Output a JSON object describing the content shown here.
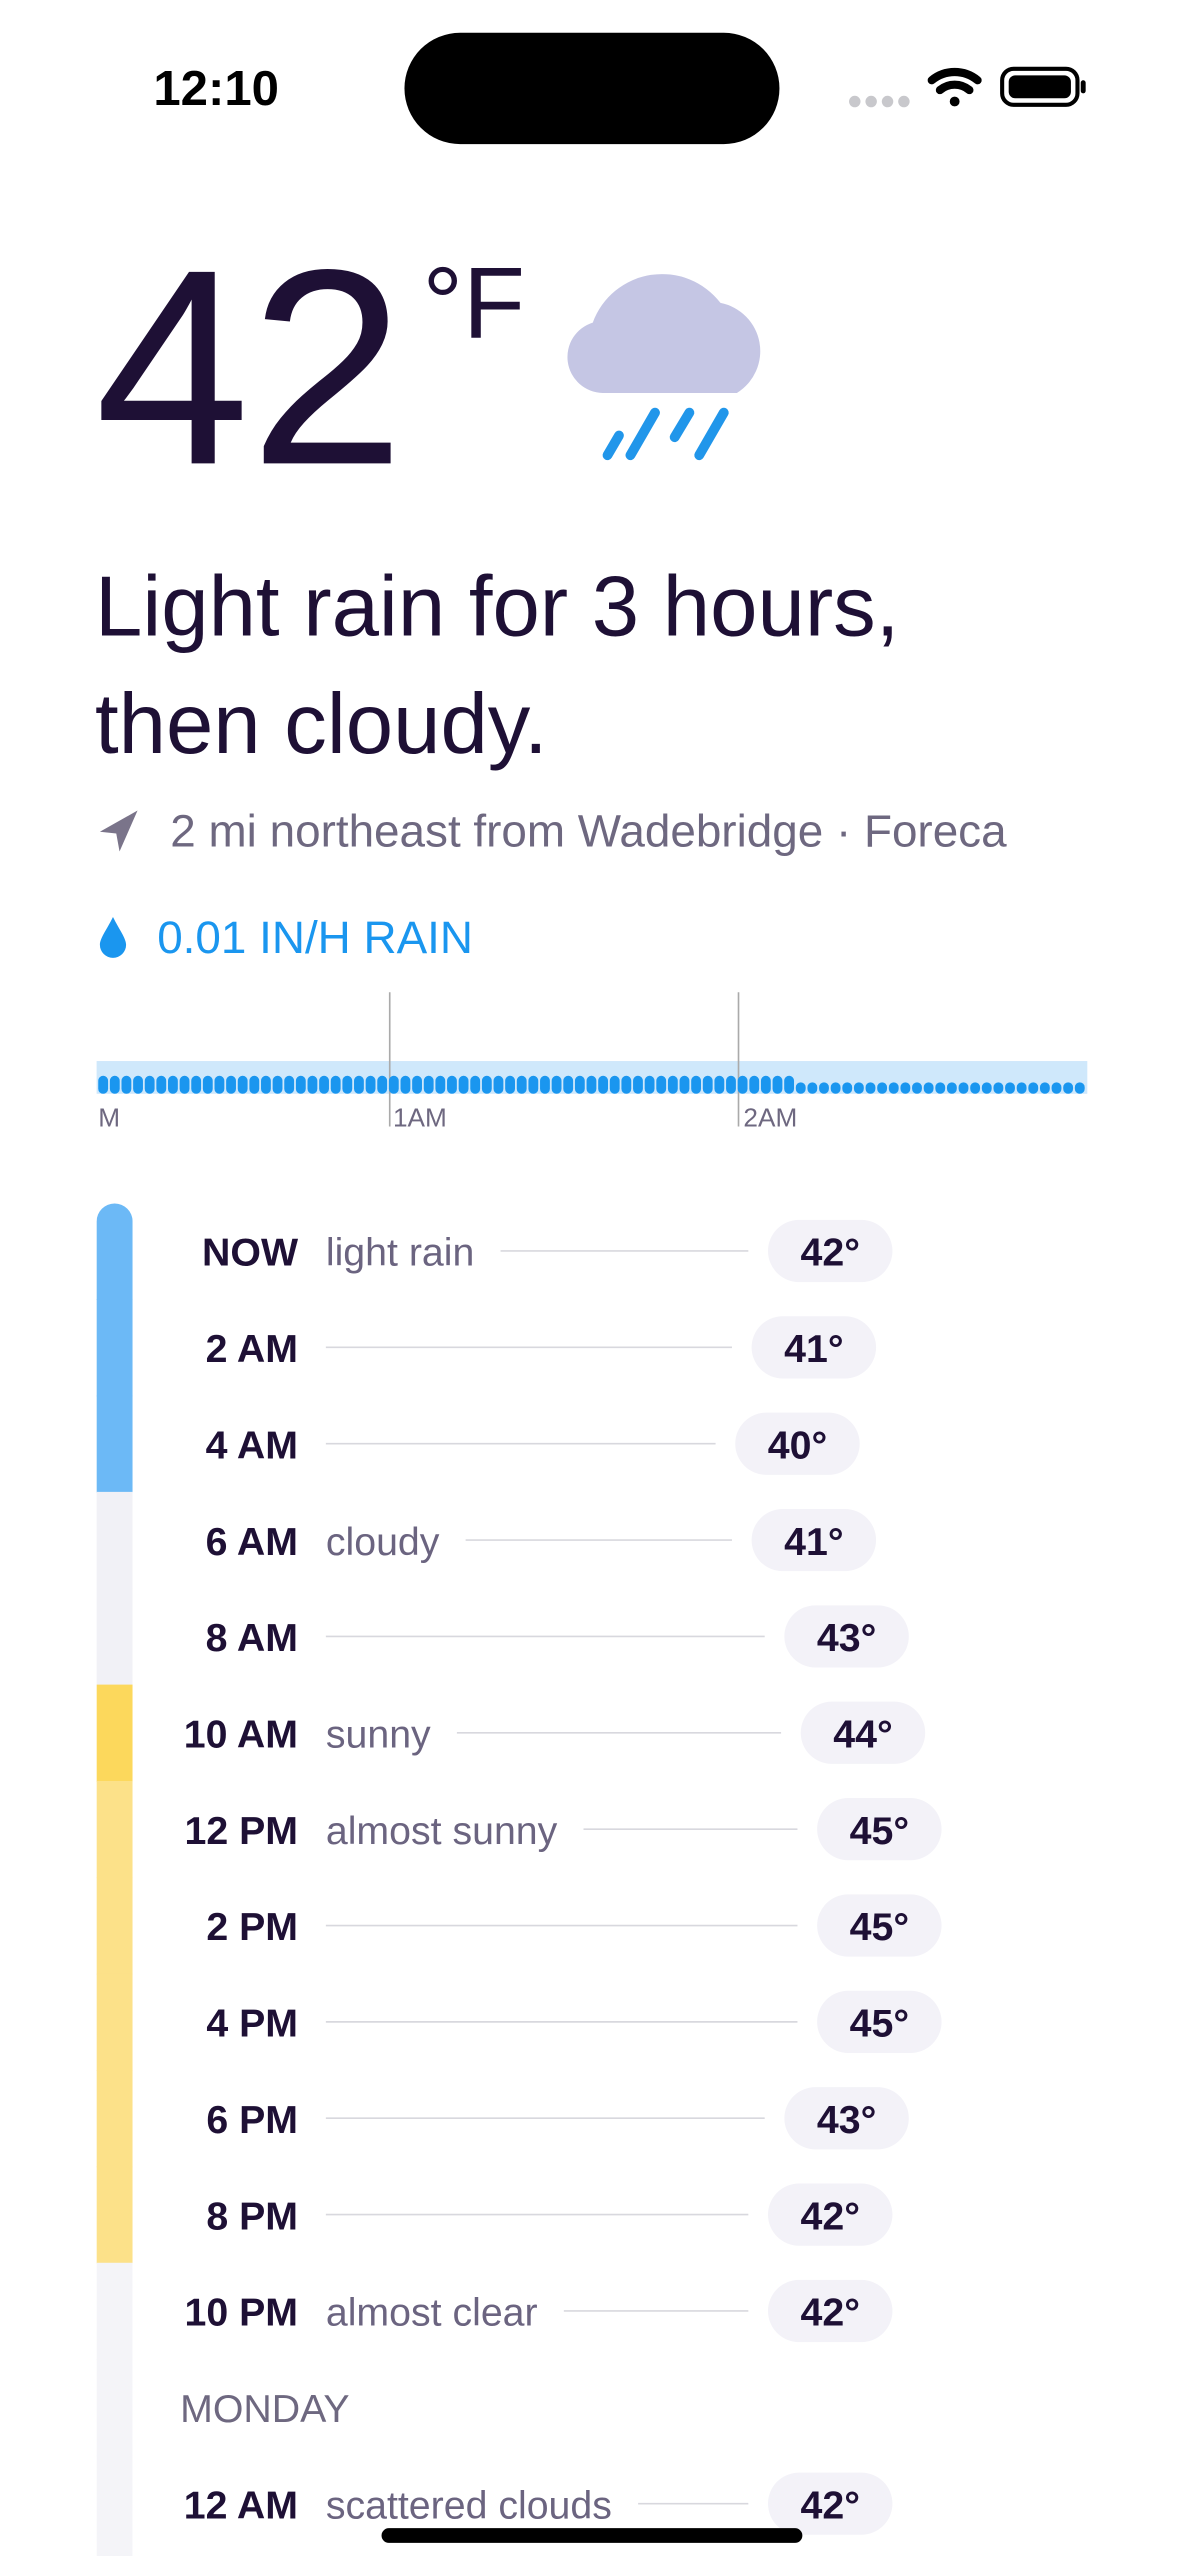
{
  "status_bar": {
    "time": "12:10"
  },
  "current": {
    "temperature": "42",
    "unit": "°F"
  },
  "summary": {
    "line1": "Light rain for 3 hours,",
    "line2": "then cloudy."
  },
  "location": "2 mi northeast from Wadebridge · Foreca",
  "precipitation": {
    "label": "0.01 IN/H RAIN",
    "timeline_labels": [
      "M",
      "1AM",
      "2AM"
    ]
  },
  "hourly": {
    "rows": [
      {
        "time": "NOW",
        "condition": "light rain",
        "temp": {
          "value": 42,
          "label": "42°"
        },
        "color": "#6cb9f6"
      },
      {
        "time": "2 AM",
        "temp": {
          "value": 41,
          "label": "41°"
        },
        "color": "#6cb9f6"
      },
      {
        "time": "4 AM",
        "temp": {
          "value": 40,
          "label": "40°"
        },
        "color": "#6cb9f6"
      },
      {
        "time": "6 AM",
        "condition": "cloudy",
        "temp": {
          "value": 41,
          "label": "41°"
        },
        "color": "#f1f1f6"
      },
      {
        "time": "8 AM",
        "temp": {
          "value": 43,
          "label": "43°"
        },
        "color": "#f1f1f6"
      },
      {
        "time": "10 AM",
        "condition": "sunny",
        "temp": {
          "value": 44,
          "label": "44°"
        },
        "color": "#fcd85c"
      },
      {
        "time": "12 PM",
        "condition": "almost sunny",
        "temp": {
          "value": 45,
          "label": "45°"
        },
        "color": "#fce189"
      },
      {
        "time": "2 PM",
        "temp": {
          "value": 45,
          "label": "45°"
        },
        "color": "#fce189"
      },
      {
        "time": "4 PM",
        "temp": {
          "value": 45,
          "label": "45°"
        },
        "color": "#fce189"
      },
      {
        "time": "6 PM",
        "temp": {
          "value": 43,
          "label": "43°"
        },
        "color": "#fce189"
      },
      {
        "time": "8 PM",
        "temp": {
          "value": 42,
          "label": "42°"
        },
        "color": "#fce189"
      },
      {
        "time": "10 PM",
        "condition": "almost clear",
        "temp": {
          "value": 42,
          "label": "42°"
        },
        "color": "#f4f4f8"
      },
      {
        "day": "MONDAY",
        "color": "#f4f4f8"
      },
      {
        "time": "12 AM",
        "condition": "scattered clouds",
        "temp": {
          "value": 42,
          "label": "42°"
        },
        "color": "#f4f4f8"
      }
    ]
  }
}
